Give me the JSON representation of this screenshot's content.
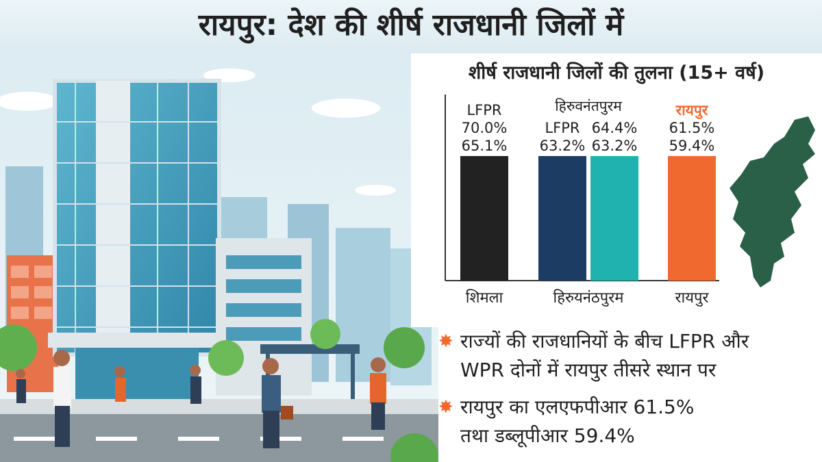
{
  "header": {
    "title": "रायपुर: देश की शीर्ष राजधानी जिलों में"
  },
  "chart_data": {
    "type": "bar",
    "title": "शीर्ष राजधानी जिलों की तुलना (15+ वर्ष)",
    "categories": [
      "शिमला",
      "हिरुयनंठपुरम",
      "",
      "रायपुर"
    ],
    "series_label": "LFPR",
    "group_label": "हिरुवनंतपुरम",
    "highlight_label": "रायपुर",
    "bars": [
      {
        "label_lines": [
          "LFPR",
          "70.0%",
          "65.1%"
        ],
        "value": 65.1,
        "color": "#222222"
      },
      {
        "label_lines": [
          "LFPR",
          "63.2%"
        ],
        "value": 63.2,
        "color": "#1c3c63"
      },
      {
        "label_lines": [
          "64.4%",
          "63.2%"
        ],
        "value": 63.2,
        "color": "#1fb2ae"
      },
      {
        "label_lines": [
          "61.5%",
          "59.4%"
        ],
        "value": 59.4,
        "color": "#f06a30"
      }
    ],
    "ylim": [
      0,
      100
    ],
    "legend": "none",
    "grid": false
  },
  "notes": [
    {
      "lines": [
        "राज्यों की राजधानियों के बीच LFPR और",
        "WPR दोनों में रायपुर तीसरे स्थान पर"
      ]
    },
    {
      "lines": [
        "रायपुर का एलएफपीआर 61.5%",
        "तथा डब्लूपीआर 59.4%"
      ]
    }
  ],
  "colors": {
    "accent": "#f26a2e",
    "map": "#2a6048"
  },
  "icons": {
    "bullet": "orange-star-icon",
    "map": "chhattisgarh-map-icon"
  }
}
